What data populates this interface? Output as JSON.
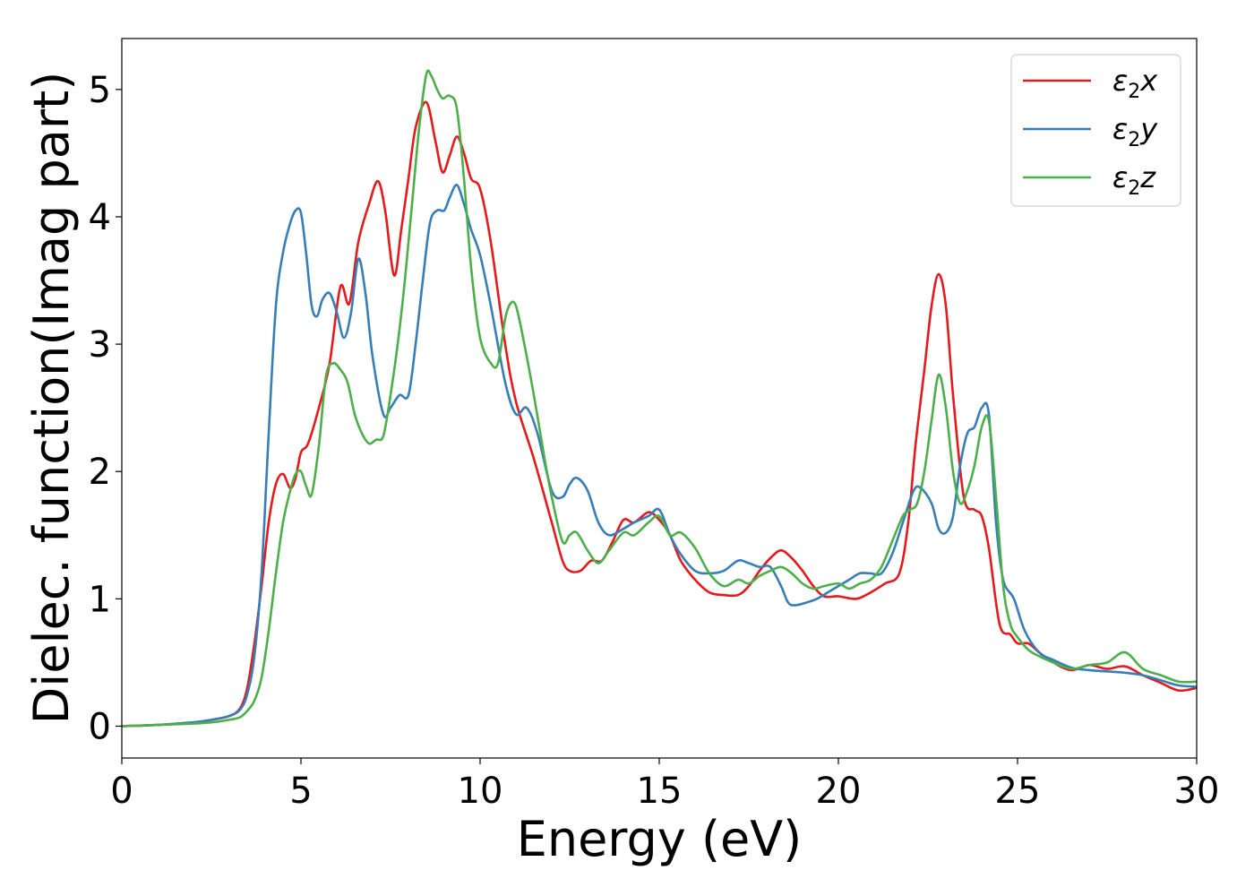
{
  "chart_data": {
    "type": "line",
    "title": "",
    "xlabel": "Energy (eV)",
    "ylabel": "Dielec. function(Imag part)",
    "xlim": [
      0,
      30
    ],
    "ylim": [
      -0.25,
      5.4
    ],
    "xticks": [
      0,
      5,
      10,
      15,
      20,
      25,
      30
    ],
    "yticks": [
      0,
      1,
      2,
      3,
      4,
      5
    ],
    "grid": false,
    "legend_position": "upper right",
    "series": [
      {
        "name": "ε₂x",
        "label_main": "ε",
        "label_sub": "2",
        "label_tail": "x",
        "color": "#e41a1c",
        "x": [
          0,
          1,
          2,
          2.5,
          3,
          3.3,
          3.5,
          3.7,
          3.9,
          4.1,
          4.3,
          4.5,
          4.7,
          4.85,
          5.0,
          5.2,
          5.5,
          5.8,
          6.1,
          6.35,
          6.6,
          6.9,
          7.15,
          7.35,
          7.6,
          7.8,
          8.0,
          8.2,
          8.5,
          8.75,
          8.95,
          9.15,
          9.35,
          9.55,
          9.75,
          10.0,
          10.3,
          10.7,
          11.0,
          11.5,
          12.0,
          12.3,
          12.5,
          12.8,
          13.1,
          13.4,
          13.7,
          14.0,
          14.3,
          14.7,
          15.0,
          15.3,
          15.6,
          16.0,
          16.4,
          16.8,
          17.2,
          17.5,
          17.8,
          18.1,
          18.4,
          18.7,
          19.0,
          19.3,
          19.6,
          20.0,
          20.5,
          20.9,
          21.3,
          21.7,
          21.95,
          22.15,
          22.4,
          22.6,
          22.8,
          23.0,
          23.2,
          23.5,
          23.8,
          24.0,
          24.2,
          24.5,
          24.8,
          25.0,
          25.3,
          25.6,
          26.0,
          26.5,
          27.0,
          27.5,
          28.0,
          28.5,
          29.0,
          29.5,
          30.0
        ],
        "y": [
          0.0,
          0.01,
          0.03,
          0.05,
          0.08,
          0.14,
          0.3,
          0.65,
          1.1,
          1.6,
          1.9,
          1.98,
          1.87,
          1.95,
          2.15,
          2.22,
          2.5,
          2.85,
          3.45,
          3.32,
          3.8,
          4.1,
          4.28,
          4.05,
          3.54,
          3.9,
          4.3,
          4.7,
          4.9,
          4.6,
          4.35,
          4.48,
          4.63,
          4.5,
          4.3,
          4.22,
          3.8,
          3.0,
          2.55,
          2.1,
          1.6,
          1.3,
          1.22,
          1.22,
          1.3,
          1.3,
          1.45,
          1.62,
          1.6,
          1.68,
          1.62,
          1.5,
          1.3,
          1.15,
          1.05,
          1.03,
          1.03,
          1.1,
          1.22,
          1.32,
          1.38,
          1.32,
          1.22,
          1.1,
          1.02,
          1.02,
          1.0,
          1.05,
          1.12,
          1.2,
          1.6,
          2.2,
          2.8,
          3.3,
          3.55,
          3.3,
          2.6,
          1.8,
          1.7,
          1.65,
          1.4,
          0.8,
          0.72,
          0.65,
          0.65,
          0.58,
          0.5,
          0.44,
          0.48,
          0.45,
          0.47,
          0.4,
          0.34,
          0.28,
          0.3
        ]
      },
      {
        "name": "ε₂y",
        "label_main": "ε",
        "label_sub": "2",
        "label_tail": "y",
        "color": "#377eb8",
        "x": [
          0,
          1,
          2,
          2.5,
          3,
          3.3,
          3.5,
          3.7,
          3.9,
          4.1,
          4.3,
          4.5,
          4.7,
          4.85,
          5.0,
          5.15,
          5.3,
          5.45,
          5.6,
          5.8,
          6.0,
          6.2,
          6.4,
          6.6,
          6.8,
          7.0,
          7.3,
          7.5,
          7.75,
          8.0,
          8.2,
          8.4,
          8.6,
          8.8,
          9.0,
          9.15,
          9.35,
          9.55,
          9.75,
          10.0,
          10.3,
          10.7,
          11.0,
          11.3,
          11.6,
          12.0,
          12.3,
          12.5,
          12.7,
          13.0,
          13.3,
          13.6,
          14.0,
          14.3,
          14.7,
          15.0,
          15.3,
          15.6,
          16.0,
          16.4,
          16.8,
          17.2,
          17.5,
          17.8,
          18.1,
          18.4,
          18.6,
          18.8,
          19.1,
          19.4,
          19.7,
          20.0,
          20.3,
          20.6,
          20.9,
          21.2,
          21.5,
          21.8,
          22.1,
          22.3,
          22.6,
          22.8,
          23.0,
          23.2,
          23.4,
          23.6,
          23.8,
          24.0,
          24.2,
          24.4,
          24.6,
          24.9,
          25.2,
          25.6,
          26.0,
          26.5,
          27.0,
          27.5,
          28.0,
          28.5,
          29.0,
          29.5,
          30.0
        ],
        "y": [
          0.0,
          0.01,
          0.03,
          0.05,
          0.08,
          0.13,
          0.25,
          0.55,
          1.2,
          2.3,
          3.3,
          3.72,
          3.95,
          4.05,
          4.03,
          3.7,
          3.3,
          3.22,
          3.35,
          3.4,
          3.25,
          3.05,
          3.25,
          3.67,
          3.4,
          2.9,
          2.45,
          2.5,
          2.6,
          2.6,
          3.0,
          3.5,
          3.95,
          4.05,
          4.05,
          4.15,
          4.25,
          4.1,
          3.9,
          3.7,
          3.3,
          2.7,
          2.45,
          2.5,
          2.3,
          1.85,
          1.8,
          1.9,
          1.95,
          1.85,
          1.6,
          1.5,
          1.55,
          1.6,
          1.65,
          1.7,
          1.5,
          1.35,
          1.22,
          1.2,
          1.22,
          1.3,
          1.28,
          1.25,
          1.25,
          1.1,
          0.97,
          0.95,
          0.97,
          1.0,
          1.05,
          1.1,
          1.15,
          1.2,
          1.2,
          1.2,
          1.35,
          1.6,
          1.85,
          1.87,
          1.75,
          1.55,
          1.52,
          1.65,
          2.05,
          2.3,
          2.35,
          2.5,
          2.45,
          1.6,
          1.15,
          1.0,
          0.75,
          0.58,
          0.52,
          0.46,
          0.44,
          0.43,
          0.42,
          0.4,
          0.36,
          0.32,
          0.31
        ]
      },
      {
        "name": "ε₂z",
        "label_main": "ε",
        "label_sub": "2",
        "label_tail": "z",
        "color": "#4daf4a",
        "x": [
          0,
          1,
          2,
          2.5,
          3,
          3.3,
          3.5,
          3.7,
          3.9,
          4.1,
          4.3,
          4.5,
          4.7,
          4.85,
          5.0,
          5.15,
          5.3,
          5.5,
          5.7,
          5.9,
          6.1,
          6.3,
          6.5,
          6.7,
          6.9,
          7.1,
          7.3,
          7.5,
          7.7,
          7.9,
          8.1,
          8.3,
          8.5,
          8.65,
          8.8,
          8.95,
          9.15,
          9.35,
          9.55,
          9.75,
          10.0,
          10.3,
          10.5,
          10.7,
          10.85,
          11.0,
          11.2,
          11.5,
          11.8,
          12.0,
          12.3,
          12.5,
          12.7,
          13.0,
          13.3,
          13.6,
          14.0,
          14.3,
          14.7,
          15.0,
          15.3,
          15.6,
          16.0,
          16.4,
          16.8,
          17.2,
          17.5,
          17.8,
          18.1,
          18.4,
          18.7,
          19.0,
          19.3,
          19.6,
          20.0,
          20.3,
          20.6,
          20.9,
          21.2,
          21.5,
          21.8,
          22.0,
          22.2,
          22.4,
          22.6,
          22.8,
          23.0,
          23.2,
          23.4,
          23.6,
          23.8,
          24.0,
          24.2,
          24.4,
          24.6,
          24.8,
          25.0,
          25.3,
          25.6,
          26.0,
          26.5,
          27.0,
          27.5,
          28.0,
          28.5,
          29.0,
          29.5,
          30.0
        ],
        "y": [
          0.0,
          0.01,
          0.02,
          0.03,
          0.05,
          0.07,
          0.12,
          0.2,
          0.38,
          0.75,
          1.2,
          1.6,
          1.85,
          1.98,
          2.0,
          1.88,
          1.82,
          2.2,
          2.75,
          2.85,
          2.8,
          2.7,
          2.45,
          2.3,
          2.22,
          2.25,
          2.28,
          2.6,
          3.0,
          3.5,
          4.1,
          4.7,
          5.12,
          5.1,
          5.0,
          4.93,
          4.95,
          4.85,
          4.3,
          3.6,
          3.05,
          2.85,
          2.85,
          3.2,
          3.32,
          3.3,
          3.05,
          2.6,
          2.1,
          1.8,
          1.45,
          1.5,
          1.52,
          1.38,
          1.28,
          1.38,
          1.52,
          1.5,
          1.6,
          1.65,
          1.5,
          1.52,
          1.4,
          1.2,
          1.1,
          1.15,
          1.12,
          1.18,
          1.22,
          1.25,
          1.2,
          1.12,
          1.08,
          1.1,
          1.12,
          1.08,
          1.12,
          1.15,
          1.25,
          1.45,
          1.65,
          1.7,
          1.75,
          2.0,
          2.4,
          2.76,
          2.5,
          2.0,
          1.75,
          1.85,
          2.05,
          2.35,
          2.4,
          1.8,
          1.1,
          0.8,
          0.7,
          0.6,
          0.55,
          0.5,
          0.45,
          0.48,
          0.5,
          0.58,
          0.45,
          0.4,
          0.35,
          0.35
        ]
      }
    ]
  }
}
